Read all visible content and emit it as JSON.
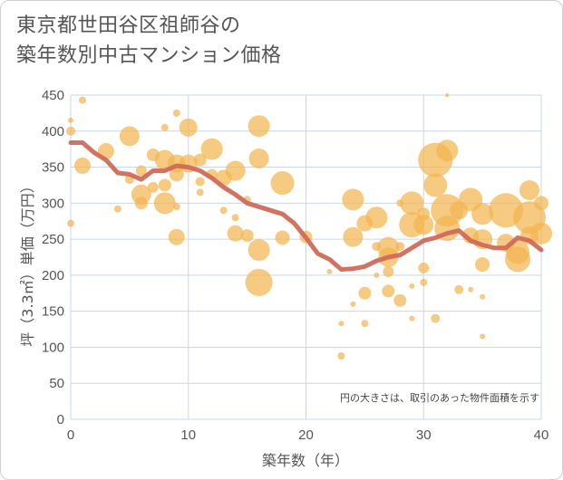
{
  "chart_data": {
    "type": "scatter",
    "title_lines": [
      "東京都世田谷区祖師谷の",
      "築年数別中古マンション価格"
    ],
    "xlabel": "築年数（年）",
    "ylabel": "坪（3.3㎡）単価（万円）",
    "note": "円の大きさは、取引のあった物件面積を示す",
    "xlim": [
      0,
      40
    ],
    "ylim": [
      0,
      450
    ],
    "x_ticks": [
      0,
      10,
      20,
      30,
      40
    ],
    "y_ticks": [
      0,
      50,
      100,
      150,
      200,
      250,
      300,
      350,
      400,
      450
    ],
    "grid": true,
    "colors": {
      "bubble": "#f3b550",
      "line": "#d06a57",
      "grid": "#c9d6ec"
    },
    "series": [
      {
        "type": "bubble",
        "points": [
          {
            "x": 0,
            "y": 415,
            "s": 3
          },
          {
            "x": 0,
            "y": 400,
            "s": 5
          },
          {
            "x": 0,
            "y": 272,
            "s": 4
          },
          {
            "x": 1,
            "y": 443,
            "s": 4
          },
          {
            "x": 1,
            "y": 352,
            "s": 9
          },
          {
            "x": 3,
            "y": 372,
            "s": 9
          },
          {
            "x": 4,
            "y": 292,
            "s": 4
          },
          {
            "x": 5,
            "y": 393,
            "s": 11
          },
          {
            "x": 5,
            "y": 333,
            "s": 5
          },
          {
            "x": 6,
            "y": 312,
            "s": 11
          },
          {
            "x": 6,
            "y": 300,
            "s": 7
          },
          {
            "x": 6,
            "y": 345,
            "s": 6
          },
          {
            "x": 7,
            "y": 367,
            "s": 7
          },
          {
            "x": 7,
            "y": 322,
            "s": 6
          },
          {
            "x": 8,
            "y": 360,
            "s": 11
          },
          {
            "x": 8,
            "y": 325,
            "s": 7
          },
          {
            "x": 8,
            "y": 300,
            "s": 12
          },
          {
            "x": 8,
            "y": 405,
            "s": 4
          },
          {
            "x": 9,
            "y": 425,
            "s": 4
          },
          {
            "x": 9,
            "y": 295,
            "s": 4
          },
          {
            "x": 9,
            "y": 253,
            "s": 9
          },
          {
            "x": 9,
            "y": 355,
            "s": 10
          },
          {
            "x": 9,
            "y": 340,
            "s": 8
          },
          {
            "x": 10,
            "y": 405,
            "s": 10
          },
          {
            "x": 10,
            "y": 355,
            "s": 10
          },
          {
            "x": 11,
            "y": 360,
            "s": 7
          },
          {
            "x": 11,
            "y": 330,
            "s": 5
          },
          {
            "x": 11,
            "y": 315,
            "s": 4
          },
          {
            "x": 12,
            "y": 375,
            "s": 12
          },
          {
            "x": 12,
            "y": 340,
            "s": 6
          },
          {
            "x": 13,
            "y": 335,
            "s": 9
          },
          {
            "x": 13,
            "y": 290,
            "s": 4
          },
          {
            "x": 14,
            "y": 345,
            "s": 11
          },
          {
            "x": 14,
            "y": 258,
            "s": 9
          },
          {
            "x": 14,
            "y": 280,
            "s": 4
          },
          {
            "x": 15,
            "y": 305,
            "s": 4
          },
          {
            "x": 15,
            "y": 255,
            "s": 7
          },
          {
            "x": 16,
            "y": 407,
            "s": 12
          },
          {
            "x": 16,
            "y": 362,
            "s": 11
          },
          {
            "x": 16,
            "y": 235,
            "s": 12
          },
          {
            "x": 16,
            "y": 190,
            "s": 15
          },
          {
            "x": 18,
            "y": 328,
            "s": 13
          },
          {
            "x": 18,
            "y": 252,
            "s": 8
          },
          {
            "x": 20,
            "y": 253,
            "s": 7
          },
          {
            "x": 22,
            "y": 205,
            "s": 3
          },
          {
            "x": 23,
            "y": 133,
            "s": 3
          },
          {
            "x": 23,
            "y": 88,
            "s": 4
          },
          {
            "x": 24,
            "y": 305,
            "s": 12
          },
          {
            "x": 24,
            "y": 253,
            "s": 11
          },
          {
            "x": 24,
            "y": 160,
            "s": 3
          },
          {
            "x": 25,
            "y": 272,
            "s": 9
          },
          {
            "x": 25,
            "y": 175,
            "s": 7
          },
          {
            "x": 25,
            "y": 133,
            "s": 4
          },
          {
            "x": 26,
            "y": 280,
            "s": 12
          },
          {
            "x": 26,
            "y": 200,
            "s": 3
          },
          {
            "x": 26,
            "y": 240,
            "s": 5
          },
          {
            "x": 27,
            "y": 238,
            "s": 12
          },
          {
            "x": 27,
            "y": 225,
            "s": 11
          },
          {
            "x": 27,
            "y": 205,
            "s": 6
          },
          {
            "x": 27,
            "y": 178,
            "s": 7
          },
          {
            "x": 28,
            "y": 240,
            "s": 5
          },
          {
            "x": 28,
            "y": 165,
            "s": 7
          },
          {
            "x": 28,
            "y": 300,
            "s": 4
          },
          {
            "x": 29,
            "y": 300,
            "s": 13
          },
          {
            "x": 29,
            "y": 270,
            "s": 14
          },
          {
            "x": 29,
            "y": 185,
            "s": 3
          },
          {
            "x": 29,
            "y": 140,
            "s": 3
          },
          {
            "x": 30,
            "y": 285,
            "s": 7
          },
          {
            "x": 30,
            "y": 270,
            "s": 11
          },
          {
            "x": 30,
            "y": 210,
            "s": 6
          },
          {
            "x": 30,
            "y": 190,
            "s": 4
          },
          {
            "x": 31,
            "y": 360,
            "s": 19
          },
          {
            "x": 31,
            "y": 325,
            "s": 13
          },
          {
            "x": 31,
            "y": 140,
            "s": 5
          },
          {
            "x": 32,
            "y": 450,
            "s": 2
          },
          {
            "x": 32,
            "y": 373,
            "s": 12
          },
          {
            "x": 32,
            "y": 290,
            "s": 18
          },
          {
            "x": 32,
            "y": 265,
            "s": 14
          },
          {
            "x": 33,
            "y": 290,
            "s": 10
          },
          {
            "x": 33,
            "y": 180,
            "s": 5
          },
          {
            "x": 34,
            "y": 305,
            "s": 13
          },
          {
            "x": 34,
            "y": 255,
            "s": 9
          },
          {
            "x": 34,
            "y": 180,
            "s": 3
          },
          {
            "x": 35,
            "y": 285,
            "s": 12
          },
          {
            "x": 35,
            "y": 250,
            "s": 11
          },
          {
            "x": 35,
            "y": 215,
            "s": 8
          },
          {
            "x": 35,
            "y": 170,
            "s": 3
          },
          {
            "x": 35,
            "y": 115,
            "s": 3
          },
          {
            "x": 37,
            "y": 290,
            "s": 19
          },
          {
            "x": 37,
            "y": 245,
            "s": 10
          },
          {
            "x": 38,
            "y": 232,
            "s": 13
          },
          {
            "x": 38,
            "y": 222,
            "s": 14
          },
          {
            "x": 39,
            "y": 318,
            "s": 11
          },
          {
            "x": 39,
            "y": 280,
            "s": 18
          },
          {
            "x": 39,
            "y": 255,
            "s": 10
          },
          {
            "x": 40,
            "y": 300,
            "s": 8
          },
          {
            "x": 40,
            "y": 258,
            "s": 12
          }
        ]
      },
      {
        "type": "line",
        "points": [
          {
            "x": 0,
            "y": 384
          },
          {
            "x": 1,
            "y": 384
          },
          {
            "x": 2,
            "y": 370
          },
          {
            "x": 3,
            "y": 360
          },
          {
            "x": 4,
            "y": 342
          },
          {
            "x": 5,
            "y": 340
          },
          {
            "x": 6,
            "y": 333
          },
          {
            "x": 7,
            "y": 345
          },
          {
            "x": 8,
            "y": 345
          },
          {
            "x": 9,
            "y": 352
          },
          {
            "x": 10,
            "y": 350
          },
          {
            "x": 11,
            "y": 345
          },
          {
            "x": 12,
            "y": 335
          },
          {
            "x": 13,
            "y": 322
          },
          {
            "x": 14,
            "y": 312
          },
          {
            "x": 15,
            "y": 300
          },
          {
            "x": 16,
            "y": 295
          },
          {
            "x": 17,
            "y": 290
          },
          {
            "x": 18,
            "y": 285
          },
          {
            "x": 19,
            "y": 272
          },
          {
            "x": 20,
            "y": 252
          },
          {
            "x": 21,
            "y": 230
          },
          {
            "x": 22,
            "y": 222
          },
          {
            "x": 23,
            "y": 208
          },
          {
            "x": 24,
            "y": 209
          },
          {
            "x": 25,
            "y": 212
          },
          {
            "x": 26,
            "y": 220
          },
          {
            "x": 27,
            "y": 225
          },
          {
            "x": 28,
            "y": 228
          },
          {
            "x": 29,
            "y": 238
          },
          {
            "x": 30,
            "y": 248
          },
          {
            "x": 31,
            "y": 252
          },
          {
            "x": 32,
            "y": 258
          },
          {
            "x": 33,
            "y": 262
          },
          {
            "x": 34,
            "y": 248
          },
          {
            "x": 35,
            "y": 242
          },
          {
            "x": 36,
            "y": 238
          },
          {
            "x": 37,
            "y": 238
          },
          {
            "x": 38,
            "y": 252
          },
          {
            "x": 39,
            "y": 248
          },
          {
            "x": 40,
            "y": 235
          }
        ]
      }
    ]
  }
}
